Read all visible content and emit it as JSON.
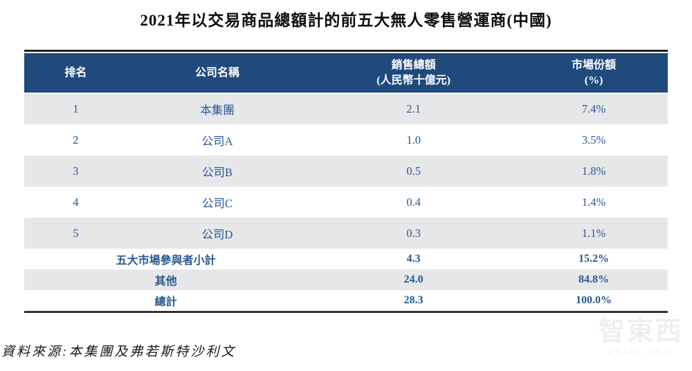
{
  "title": "2021年以交易商品總額計的前五大無人零售營運商(中國)",
  "table": {
    "headers": {
      "rank": "排名",
      "company": "公司名稱",
      "sales_line1": "銷售總額",
      "sales_line2": "(人民幣十億元)",
      "share_line1": "市場份額",
      "share_line2": "(%)"
    },
    "rows": [
      {
        "rank": "1",
        "company": "本集團",
        "sales": "2.1",
        "share": "7.4%"
      },
      {
        "rank": "2",
        "company": "公司A",
        "sales": "1.0",
        "share": "3.5%"
      },
      {
        "rank": "3",
        "company": "公司B",
        "sales": "0.5",
        "share": "1.8%"
      },
      {
        "rank": "4",
        "company": "公司C",
        "sales": "0.4",
        "share": "1.4%"
      },
      {
        "rank": "5",
        "company": "公司D",
        "sales": "0.3",
        "share": "1.1%"
      }
    ],
    "summary_rows": [
      {
        "label": "五大市場參與者小計",
        "sales": "4.3",
        "share": "15.2%"
      },
      {
        "label": "其他",
        "sales": "24.0",
        "share": "84.8%"
      },
      {
        "label": "總計",
        "sales": "28.3",
        "share": "100.0%"
      }
    ]
  },
  "source_note": "資料來源:本集團及弗若斯特沙利文",
  "watermark": {
    "logo_text": "智東西",
    "domain_text": "zhidx.com"
  },
  "colors": {
    "header_bg": "#204a7b",
    "row_alt_bg": "#e6e7e9",
    "text_blue": "#2a5890",
    "border_dark": "#333333"
  }
}
